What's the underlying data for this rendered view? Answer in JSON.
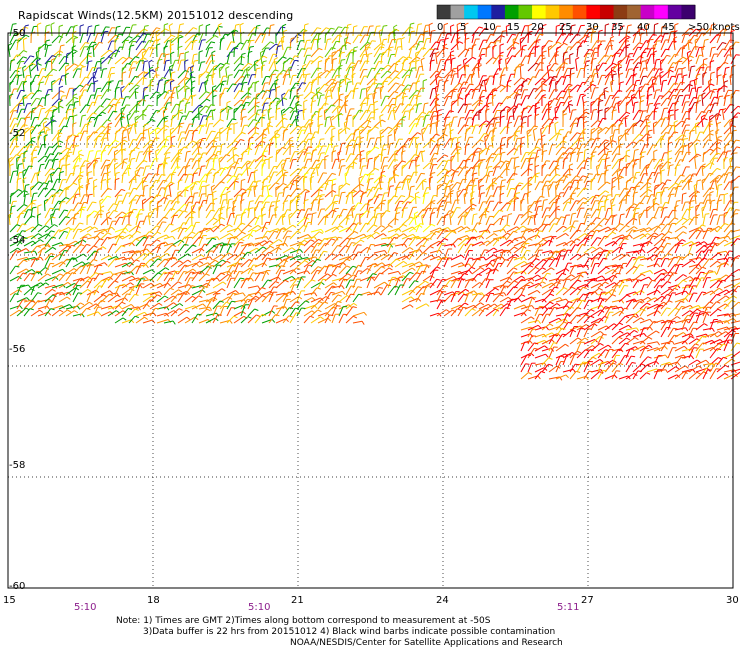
{
  "header": {
    "title": "Rapidscat Winds(12.5KM) 20151012 descending"
  },
  "legend": {
    "labels": [
      "0",
      "5",
      "10",
      "15",
      "20",
      "25",
      "30",
      "35",
      "40",
      "45",
      ">50 knots"
    ],
    "colors": [
      "#3c3c3c",
      "#a0a0a0",
      "#00c8f0",
      "#0078ff",
      "#1e1ea0",
      "#00a000",
      "#64c800",
      "#ffff00",
      "#ffc800",
      "#ff8c00",
      "#ff5000",
      "#ff0000",
      "#c80000",
      "#8c3c14",
      "#a06432",
      "#c800c8",
      "#ff00ff",
      "#6400a0",
      "#3c006e"
    ]
  },
  "map": {
    "lat_labels": [
      "-50",
      "-52",
      "-54",
      "-56",
      "-58",
      "-60"
    ],
    "lon_labels": [
      "15",
      "18",
      "21",
      "24",
      "27",
      "30"
    ],
    "time_labels": [
      "5:10",
      "5:10",
      "5:11"
    ],
    "time_color": "#8c1e8c"
  },
  "notes": {
    "line1": "Note: 1) Times are GMT 2)Times along bottom correspond to measurement at -50S",
    "line2": "3)Data buffer is 22 hrs from 20151012 4) Black wind barbs indicate possible contamination",
    "line3": "NOAA/NESDIS/Center for Satellite Applications and Research"
  },
  "chart_data": {
    "type": "wind-barb-map",
    "title": "Rapidscat Winds(12.5KM) 20151012 descending",
    "lat_range": [
      -60,
      -50
    ],
    "lon_range": [
      15,
      30
    ],
    "lat_ticks": [
      -50,
      -52,
      -54,
      -56,
      -58,
      -60
    ],
    "lon_ticks": [
      15,
      18,
      21,
      24,
      27,
      30
    ],
    "units": "knots",
    "color_scale": [
      0,
      5,
      10,
      15,
      20,
      25,
      30,
      35,
      40,
      45,
      50
    ],
    "swath_speed_summary": [
      {
        "region": "north-west (-50 to -53, 15-21)",
        "speed_knots": "10-25"
      },
      {
        "region": "north-east (-50 to -53, 24-30)",
        "speed_knots": "25-35"
      },
      {
        "region": "central (-53 to -55)",
        "speed_knots": "20-30"
      },
      {
        "region": "south-east (-55 to -56.5, 25-30)",
        "speed_knots": "30-40"
      }
    ]
  }
}
